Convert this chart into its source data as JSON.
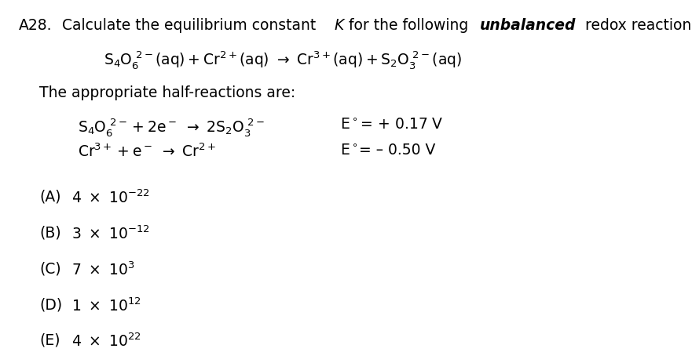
{
  "background_color": "#ffffff",
  "font_size": 13.5,
  "font_size_small": 11,
  "choices": [
    {
      "label": "(A)",
      "mantissa": "4 × 10",
      "exp": "⁻²²",
      "exp_str": "-22"
    },
    {
      "label": "(B)",
      "mantissa": "3 × 10",
      "exp": "⁻¹²",
      "exp_str": "-12"
    },
    {
      "label": "(C)",
      "mantissa": "7 × 10",
      "exp": "³",
      "exp_str": "3"
    },
    {
      "label": "(D)",
      "mantissa": "1 × 10",
      "exp": "¹²",
      "exp_str": "12"
    },
    {
      "label": "(E)",
      "mantissa": "4 × 10",
      "exp": "²²",
      "exp_str": "22"
    }
  ]
}
